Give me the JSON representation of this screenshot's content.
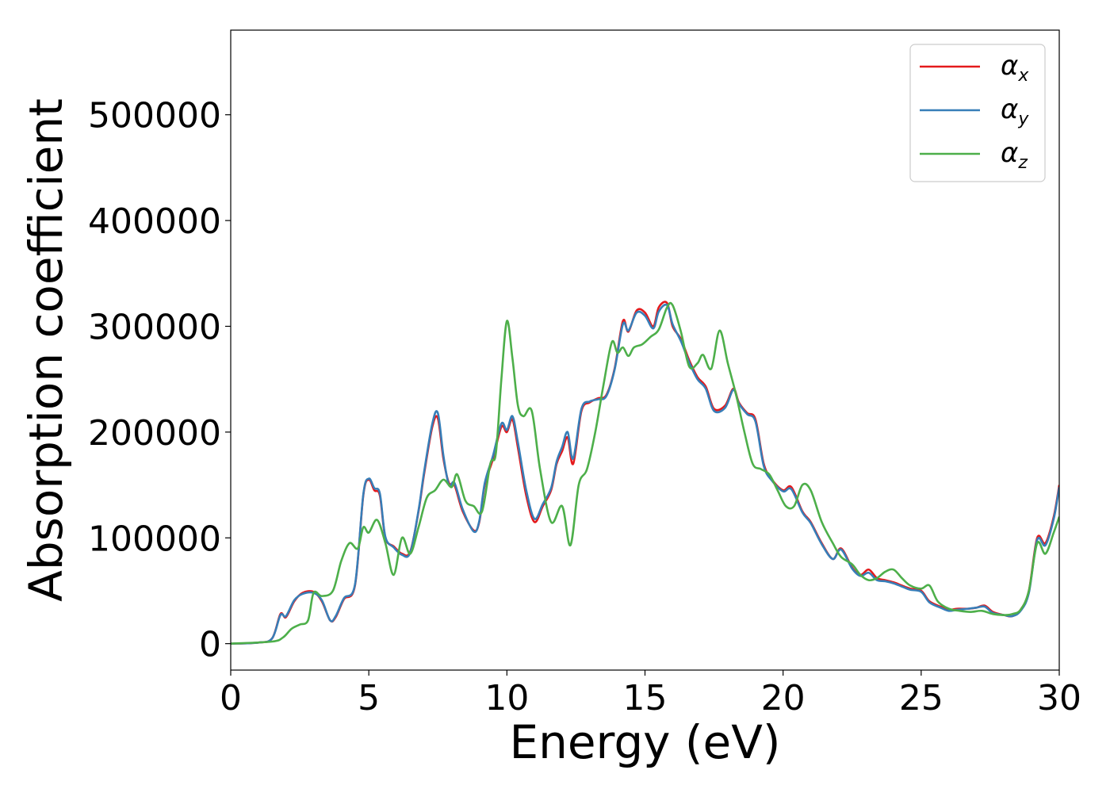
{
  "chart_data": {
    "type": "line",
    "xlabel": "Energy (eV)",
    "ylabel": "Absorption coefficient",
    "xlim": [
      0,
      30
    ],
    "ylim": [
      -25000,
      580000
    ],
    "x_ticks": [
      0,
      5,
      10,
      15,
      20,
      25,
      30
    ],
    "y_ticks": [
      0,
      100000,
      200000,
      300000,
      400000,
      500000
    ],
    "grid": false,
    "legend_position": "top-right",
    "series": [
      {
        "name": "α_x",
        "legend_symbol": "α",
        "legend_subscript": "x",
        "color": "#e41a1c",
        "x": [
          0,
          1.0,
          1.5,
          1.8,
          2.0,
          2.3,
          2.6,
          3.0,
          3.3,
          3.6,
          3.8,
          4.1,
          4.5,
          4.8,
          5.0,
          5.2,
          5.4,
          5.6,
          5.9,
          6.2,
          6.5,
          6.8,
          7.0,
          7.3,
          7.5,
          7.7,
          7.9,
          8.1,
          8.4,
          8.8,
          9.0,
          9.2,
          9.5,
          9.8,
          10.0,
          10.2,
          10.4,
          10.7,
          11.0,
          11.3,
          11.6,
          11.8,
          12.0,
          12.2,
          12.4,
          12.7,
          13.0,
          13.3,
          13.6,
          13.9,
          14.2,
          14.4,
          14.7,
          15.0,
          15.3,
          15.5,
          15.8,
          16.0,
          16.3,
          16.6,
          16.9,
          17.2,
          17.5,
          17.9,
          18.2,
          18.4,
          18.7,
          19.0,
          19.3,
          19.6,
          20.0,
          20.3,
          20.7,
          21.0,
          21.4,
          21.8,
          22.1,
          22.5,
          22.8,
          23.1,
          23.4,
          23.7,
          24.0,
          24.3,
          24.6,
          25.0,
          25.3,
          25.7,
          26.0,
          26.3,
          26.7,
          27.0,
          27.3,
          27.6,
          28.0,
          28.3,
          28.6,
          28.9,
          29.2,
          29.5,
          29.8,
          30.0
        ],
        "values": [
          0,
          1000,
          5000,
          28000,
          25000,
          40000,
          48000,
          49000,
          40000,
          22000,
          25000,
          42000,
          55000,
          140000,
          155000,
          145000,
          140000,
          100000,
          92000,
          85000,
          87000,
          125000,
          160000,
          205000,
          213000,
          175000,
          152000,
          150000,
          125000,
          107000,
          115000,
          150000,
          175000,
          205000,
          200000,
          212000,
          185000,
          140000,
          115000,
          130000,
          145000,
          170000,
          182000,
          195000,
          170000,
          220000,
          228000,
          232000,
          235000,
          260000,
          305000,
          295000,
          315000,
          313000,
          300000,
          318000,
          322000,
          300000,
          288000,
          268000,
          252000,
          243000,
          222000,
          225000,
          241000,
          228000,
          218000,
          212000,
          170000,
          155000,
          145000,
          148000,
          125000,
          115000,
          95000,
          80000,
          90000,
          72000,
          65000,
          70000,
          62000,
          60000,
          58000,
          55000,
          52000,
          50000,
          40000,
          35000,
          32000,
          33000,
          33000,
          34000,
          36000,
          30000,
          27000,
          26000,
          32000,
          50000,
          100000,
          95000,
          120000,
          150000
        ]
      },
      {
        "name": "α_y",
        "legend_symbol": "α",
        "legend_subscript": "y",
        "color": "#377eb8",
        "x": [
          0,
          1.0,
          1.5,
          1.8,
          2.0,
          2.3,
          2.6,
          3.0,
          3.3,
          3.6,
          3.8,
          4.1,
          4.5,
          4.8,
          5.0,
          5.2,
          5.4,
          5.6,
          5.9,
          6.2,
          6.5,
          6.8,
          7.0,
          7.3,
          7.5,
          7.7,
          7.9,
          8.1,
          8.4,
          8.8,
          9.0,
          9.2,
          9.5,
          9.8,
          10.0,
          10.2,
          10.4,
          10.7,
          11.0,
          11.3,
          11.6,
          11.8,
          12.0,
          12.2,
          12.4,
          12.7,
          13.0,
          13.3,
          13.6,
          13.9,
          14.2,
          14.4,
          14.7,
          15.0,
          15.3,
          15.5,
          15.8,
          16.0,
          16.3,
          16.6,
          16.9,
          17.2,
          17.5,
          17.9,
          18.2,
          18.4,
          18.7,
          19.0,
          19.3,
          19.6,
          20.0,
          20.3,
          20.7,
          21.0,
          21.4,
          21.8,
          22.1,
          22.5,
          22.8,
          23.1,
          23.4,
          23.7,
          24.0,
          24.3,
          24.6,
          25.0,
          25.3,
          25.7,
          26.0,
          26.3,
          26.7,
          27.0,
          27.3,
          27.6,
          28.0,
          28.3,
          28.6,
          28.9,
          29.2,
          29.5,
          29.8,
          30.0
        ],
        "values": [
          0,
          1000,
          5000,
          27000,
          26000,
          41000,
          47000,
          48000,
          41000,
          22000,
          26000,
          43000,
          56000,
          141000,
          156000,
          147000,
          142000,
          101000,
          91000,
          84000,
          86000,
          126000,
          162000,
          208000,
          218000,
          178000,
          150000,
          152000,
          127000,
          106000,
          116000,
          152000,
          178000,
          208000,
          202000,
          215000,
          190000,
          145000,
          118000,
          132000,
          147000,
          172000,
          186000,
          200000,
          175000,
          222000,
          229000,
          231000,
          234000,
          259000,
          302000,
          296000,
          313000,
          310000,
          298000,
          314000,
          320000,
          302000,
          286000,
          266000,
          250000,
          241000,
          220000,
          223000,
          240000,
          227000,
          217000,
          210000,
          168000,
          154000,
          144000,
          146000,
          124000,
          114000,
          94000,
          80000,
          89000,
          71000,
          64000,
          67000,
          60000,
          59000,
          57000,
          54000,
          51000,
          49000,
          39000,
          34000,
          31000,
          32000,
          33000,
          34000,
          35000,
          29000,
          27000,
          26000,
          31000,
          48000,
          98000,
          93000,
          118000,
          148000
        ]
      },
      {
        "name": "α_z",
        "legend_symbol": "α",
        "legend_subscript": "z",
        "color": "#4daf4a",
        "x": [
          0,
          1.5,
          1.9,
          2.2,
          2.5,
          2.8,
          3.0,
          3.3,
          3.7,
          4.0,
          4.3,
          4.6,
          4.8,
          5.0,
          5.3,
          5.6,
          5.9,
          6.2,
          6.5,
          6.8,
          7.1,
          7.4,
          7.7,
          8.0,
          8.2,
          8.5,
          8.8,
          9.1,
          9.4,
          9.6,
          9.8,
          10.0,
          10.2,
          10.4,
          10.6,
          10.9,
          11.2,
          11.6,
          12.0,
          12.3,
          12.6,
          12.9,
          13.2,
          13.5,
          13.8,
          14.0,
          14.2,
          14.4,
          14.6,
          14.9,
          15.2,
          15.5,
          15.8,
          16.0,
          16.3,
          16.6,
          16.9,
          17.1,
          17.4,
          17.7,
          18.0,
          18.3,
          18.6,
          18.9,
          19.2,
          19.5,
          19.8,
          20.1,
          20.4,
          20.7,
          21.0,
          21.4,
          21.8,
          22.1,
          22.5,
          22.8,
          23.1,
          23.4,
          23.7,
          24.0,
          24.3,
          24.6,
          25.0,
          25.3,
          25.6,
          26.0,
          26.4,
          26.8,
          27.2,
          27.6,
          28.0,
          28.3,
          28.6,
          28.9,
          29.2,
          29.5,
          29.8,
          30.0
        ],
        "values": [
          0,
          2000,
          6000,
          14000,
          18000,
          22000,
          48000,
          45000,
          50000,
          78000,
          95000,
          90000,
          110000,
          105000,
          117000,
          95000,
          65000,
          100000,
          85000,
          110000,
          138000,
          145000,
          155000,
          148000,
          160000,
          135000,
          130000,
          125000,
          170000,
          180000,
          250000,
          305000,
          270000,
          225000,
          215000,
          220000,
          165000,
          115000,
          130000,
          93000,
          150000,
          165000,
          200000,
          245000,
          285000,
          275000,
          280000,
          272000,
          280000,
          283000,
          290000,
          297000,
          318000,
          320000,
          295000,
          262000,
          265000,
          273000,
          260000,
          296000,
          265000,
          235000,
          200000,
          170000,
          165000,
          160000,
          145000,
          130000,
          130000,
          150000,
          145000,
          115000,
          95000,
          82000,
          75000,
          65000,
          60000,
          62000,
          68000,
          70000,
          62000,
          55000,
          52000,
          55000,
          40000,
          33000,
          31000,
          30000,
          31000,
          28000,
          27000,
          28000,
          32000,
          50000,
          95000,
          85000,
          105000,
          120000
        ]
      }
    ]
  }
}
